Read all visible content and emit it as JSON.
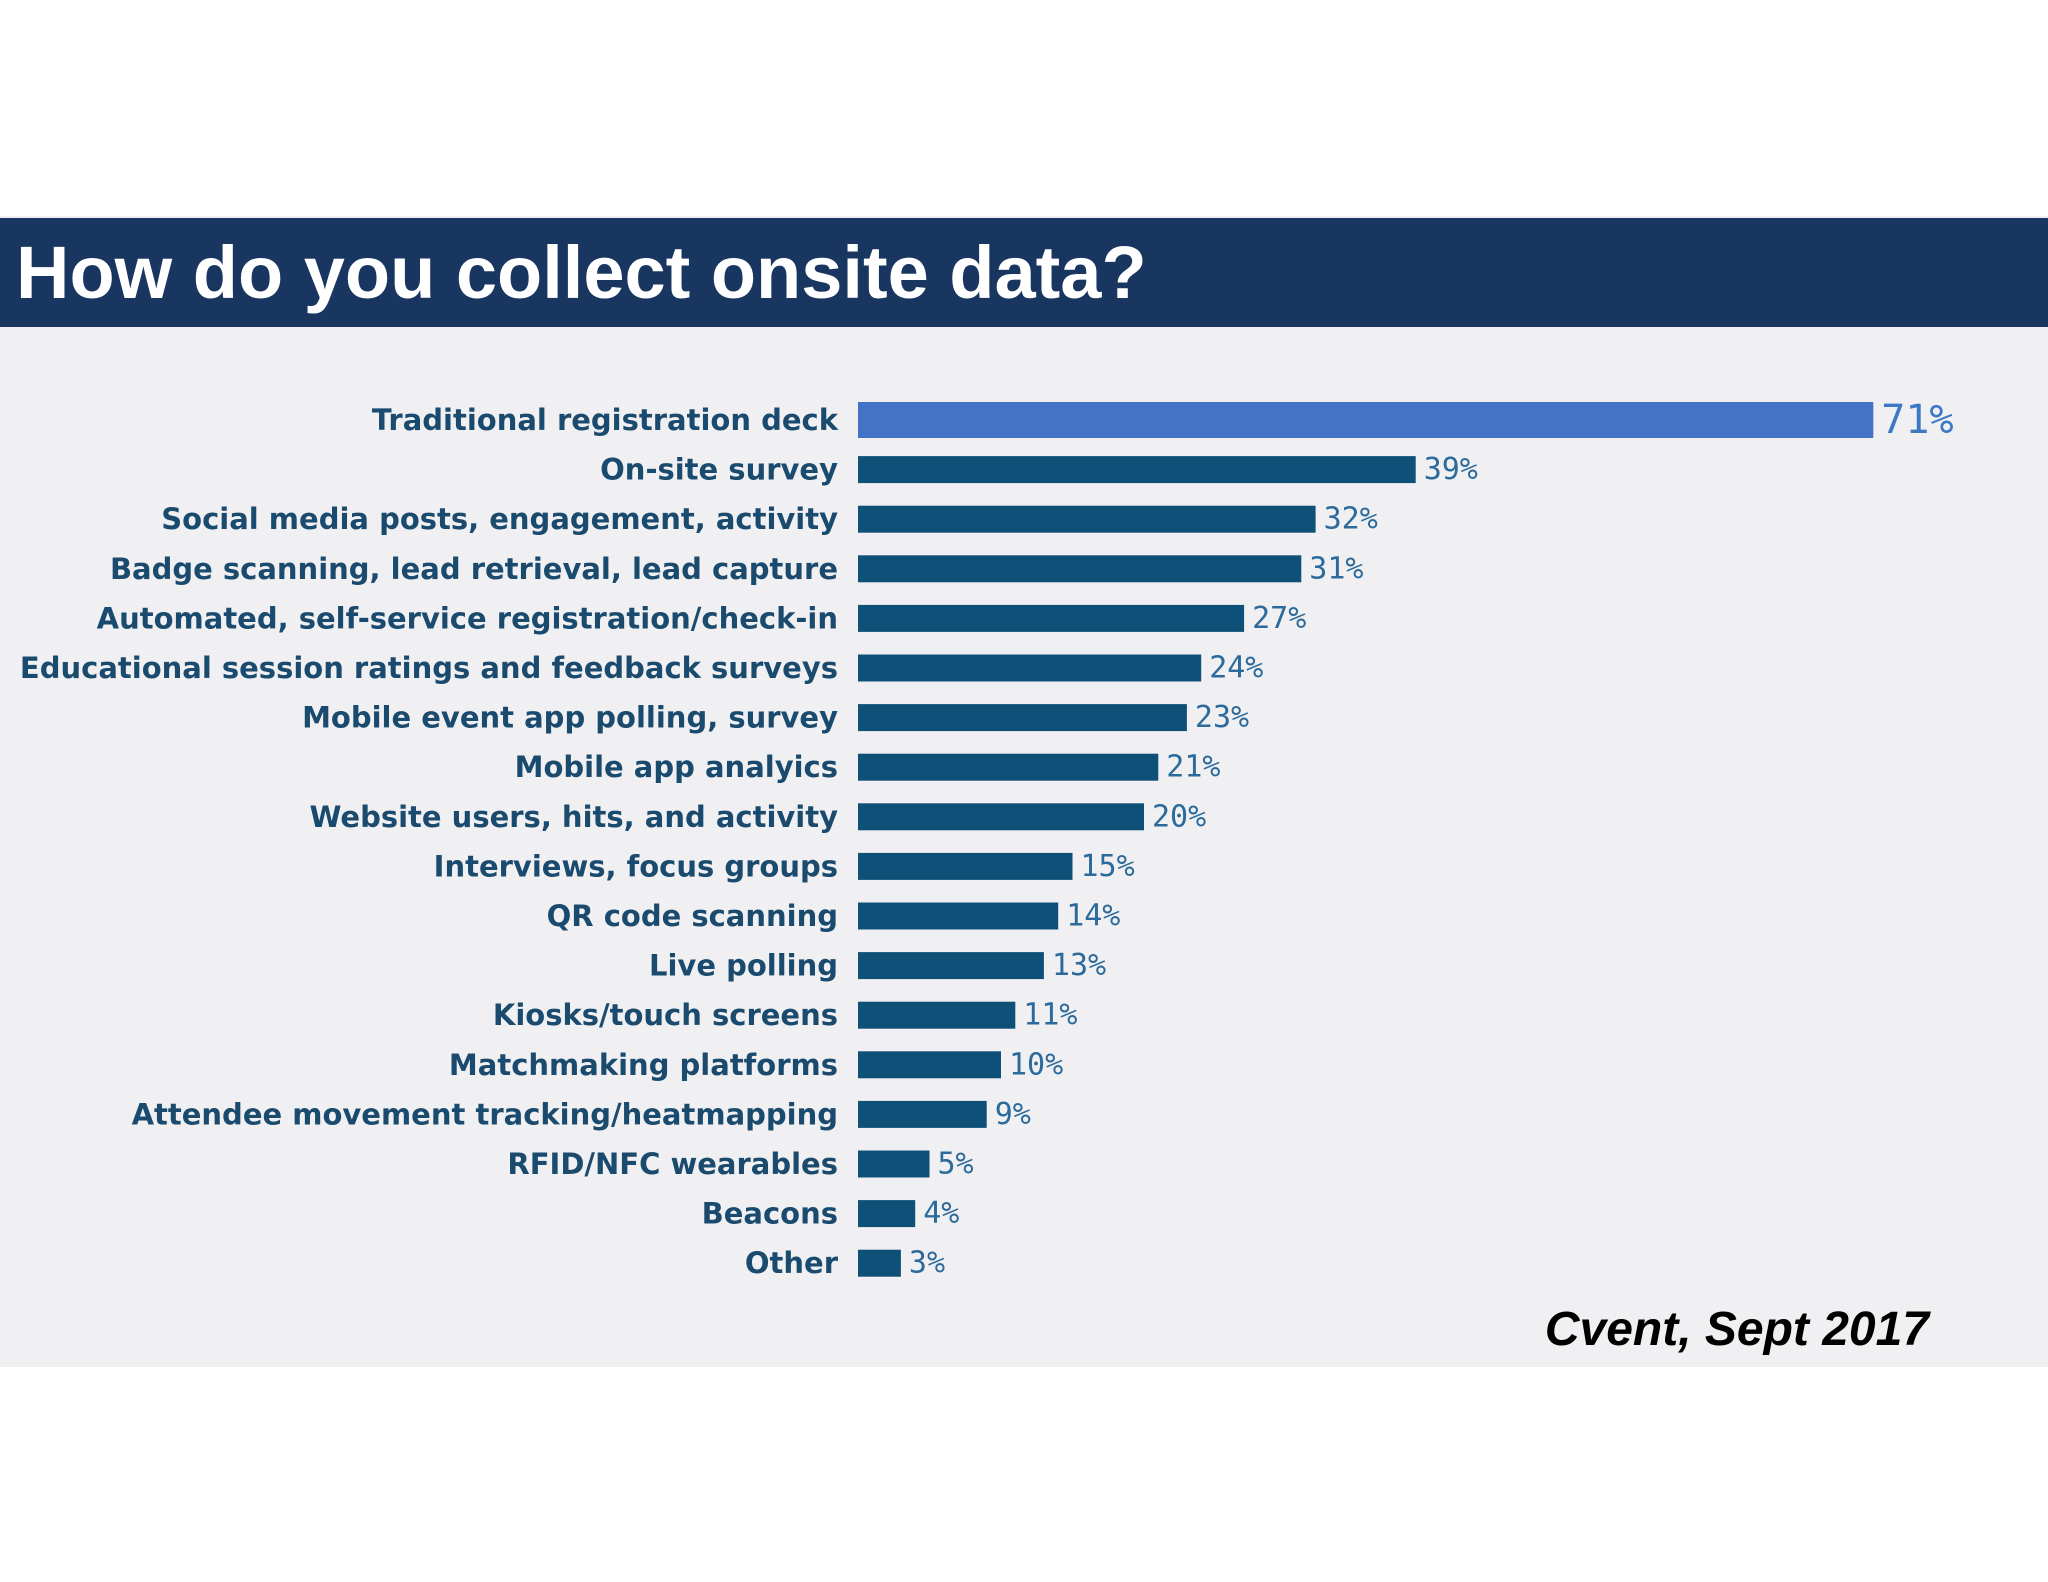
{
  "title": "How do you collect onsite data?",
  "source": "Cvent, Sept 2017",
  "colors": {
    "header_background": "#18365f",
    "highlight_bar": "#4472c4",
    "bar": "#0f5079",
    "panel_background": "#f0f0f2"
  },
  "chart_data": {
    "type": "bar",
    "orientation": "horizontal",
    "categories": [
      "Traditional registration deck",
      "On-site survey",
      "Social media posts, engagement, activity",
      "Badge scanning, lead retrieval, lead capture",
      "Automated, self-service registration/check-in",
      "Educational session ratings and feedback surveys",
      "Mobile event app polling, survey",
      "Mobile app analyics",
      "Website users, hits, and activity",
      "Interviews, focus groups",
      "QR code scanning",
      "Live polling",
      "Kiosks/touch screens",
      "Matchmaking platforms",
      "Attendee movement tracking/heatmapping",
      "RFID/NFC wearables",
      "Beacons",
      "Other"
    ],
    "values": [
      71,
      39,
      32,
      31,
      27,
      24,
      23,
      21,
      20,
      15,
      14,
      13,
      11,
      10,
      9,
      5,
      4,
      3
    ],
    "value_labels": [
      "71%",
      "39%",
      "32%",
      "31%",
      "27%",
      "24%",
      "23%",
      "21%",
      "20%",
      "15%",
      "14%",
      "13%",
      "11%",
      "10%",
      "9%",
      "5%",
      "4%",
      "3%"
    ],
    "unit": "%",
    "grid": false,
    "legend": "none"
  }
}
